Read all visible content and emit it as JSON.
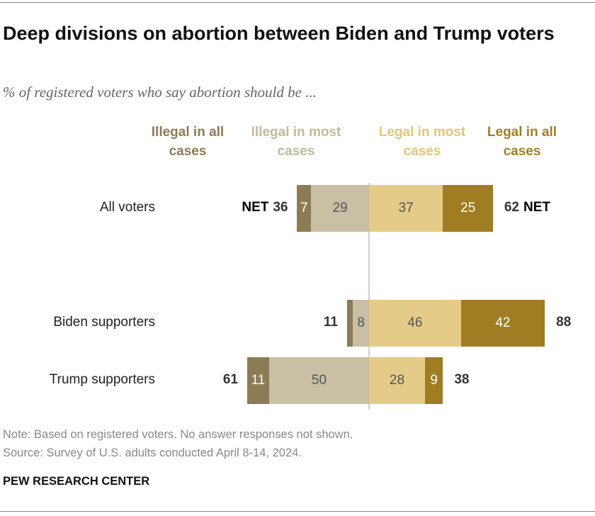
{
  "chart_data": {
    "type": "diverging_bar",
    "title": "Deep divisions on abortion between Biden and Trump voters",
    "subtitle": "% of registered voters who say abortion should be ...",
    "categories": [
      "All voters",
      "Biden supporters",
      "Trump supporters"
    ],
    "series": [
      {
        "name": "Illegal in all cases",
        "color": "#8c7b55",
        "text_color": "#ffffff",
        "values": [
          7,
          3,
          11
        ],
        "value_labels": [
          "7",
          null,
          "11"
        ]
      },
      {
        "name": "Illegal in most cases",
        "color": "#c8bfa4",
        "text_color": "#555555",
        "values": [
          29,
          8,
          50
        ]
      },
      {
        "name": "Legal in most cases",
        "color": "#e4cb87",
        "text_color": "#555555",
        "values": [
          37,
          46,
          28
        ]
      },
      {
        "name": "Legal in all cases",
        "color": "#a07d22",
        "text_color": "#ffffff",
        "values": [
          25,
          42,
          9
        ]
      }
    ],
    "legend_colors": [
      "#8c7b55",
      "#c3ba9c",
      "#e2c67a",
      "#a17f26"
    ],
    "net_label": "NET",
    "net_illegal": [
      36,
      11,
      61
    ],
    "net_legal": [
      62,
      88,
      38
    ],
    "note": "Note: Based on registered voters. No answer responses not shown.",
    "source": "Source: Survey of U.S. adults conducted April 8-14, 2024.",
    "organization": "PEW RESEARCH CENTER"
  }
}
